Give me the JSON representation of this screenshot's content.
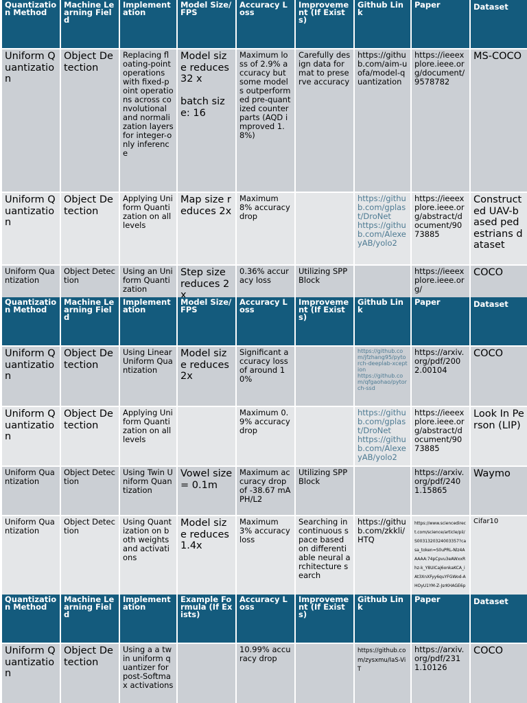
{
  "headers_a": [
    "Quantization Method",
    "Machine Learning Field",
    "Implementation",
    "Model Size/FPS",
    "Accuracy Loss",
    "Improvement (If Exists)",
    "Github Link",
    "Paper",
    "Dataset"
  ],
  "headers_c": [
    "Quantization Method",
    "Machine Learning Field",
    "Implementation",
    "Example Formula (If Exists)",
    "Accuracy Loss",
    "Improvement (If Exists)",
    "Github Link",
    "Paper",
    "Dataset"
  ],
  "rows": [
    {
      "method": "Uniform Quantization",
      "field": "Object Detection",
      "implementation": "Replacing floating-point operations with fixed-point operations across convolutional and normalization layers for integer-only inference",
      "size": "Model size reduces 32 x\n\nbatch size: 16",
      "accuracy": "Maximum loss of 2.9% accuracy but some models outperformed pre-quantized counterparts (AQD improved 1.8%)",
      "improvement": "Carefully design data format to preserve accuracy",
      "github": [
        "https://github.com/aim-uofa/model-quantization"
      ],
      "paper": "https://ieeexplore.ieee.org/document/9578782",
      "dataset": "MS-COCO"
    },
    {
      "method": "Uniform Quantization",
      "field": "Object Detection",
      "implementation": "Applying Uniform Quantization on all levels",
      "size": "Map size reduces 2x",
      "accuracy": "Maximum 8% accuracy drop",
      "improvement": "",
      "github": [
        "https://github.com/gplast/DroNet",
        "https://github.com/AlexeyAB/yolo2"
      ],
      "paper": "https://ieeexplore.ieee.org/abstract/document/9073885",
      "dataset": "Constructed UAV-based pedestrians dataset"
    },
    {
      "method": "Uniform Quantization",
      "field": "Object Detection",
      "implementation": "Using an Uniform Quantization",
      "size": "Step size reduces 2x",
      "accuracy": "0.36% accuracy loss",
      "improvement": "Utilizing SPP Block",
      "github": [],
      "paper": "https://ieeexplore.ieee.org/",
      "dataset": "COCO"
    },
    {
      "method": "Uniform Quantization",
      "field": "Object Detection",
      "implementation": "Using Linear Uniform Quantization",
      "size": "Model size reduces 2x",
      "accuracy": "Significant accuracy loss of around 10%",
      "improvement": "",
      "github": [
        "https://github.com/jfzhang95/pytorch-deeplab-xception",
        "https://github.com/qfgaohao/pytorch-ssd"
      ],
      "paper": "https://arxiv.org/pdf/2002.00104",
      "dataset": "COCO"
    },
    {
      "method": "Uniform Quantization",
      "field": "Object Detection",
      "implementation": "Applying Uniform Quantization on all levels",
      "size": "",
      "accuracy": "Maximum 0.9% accuracy drop",
      "improvement": "",
      "github": [
        "https://github.com/gplast/DroNet",
        "https://github.com/AlexeyAB/yolo2"
      ],
      "paper": "https://ieeexplore.ieee.org/abstract/document/9073885",
      "dataset": "Look In Person (LIP)"
    },
    {
      "method": "Uniform Quantization",
      "field": "Object Detection",
      "implementation": "Using Twin Uniform Quantization",
      "size": "Vowel size = 0.1m",
      "accuracy": "Maximum accuracy drop of -38.67 mAPH/L2",
      "improvement": "Utilizing SPP Block",
      "github": [],
      "paper": "https://arxiv.org/pdf/2401.15865",
      "dataset": "Waymo"
    },
    {
      "method": "Uniform Quantization",
      "field": "Object Detection",
      "implementation": "Using Quantization on both weights and activations",
      "size": "Model size reduces 1.4x",
      "accuracy": "Maximum 3% accuracy loss",
      "improvement": "Searching in continuous space based on differentiable neural architecture search",
      "github": [
        "https://github.com/zkkli/HTQ"
      ],
      "paper": "https://www.sciencedirect.com/science/article/pii/S0031320324003357?casa_token=S0uPRL-Nlz4AAAAA:74pCpvu3eAWxxRhz-k_Y8UICaj6onkaKCA_iAt3XnXFyy6quYFGWod-AHOyU1YM-Z-JsrKHAGE6p",
      "dataset": "Cifar10"
    },
    {
      "method": "Uniform Quantization",
      "field": "Object Detection",
      "implementation": "Using a a twin uniform quantizer for post-Softmax activations",
      "size": "",
      "accuracy": "10.99% accuracy drop",
      "improvement": "",
      "github": [
        "https://github.com/zysxmu/IaS-ViT"
      ],
      "paper": "https://arxiv.org/pdf/2311.10126",
      "dataset": "COCO"
    }
  ]
}
